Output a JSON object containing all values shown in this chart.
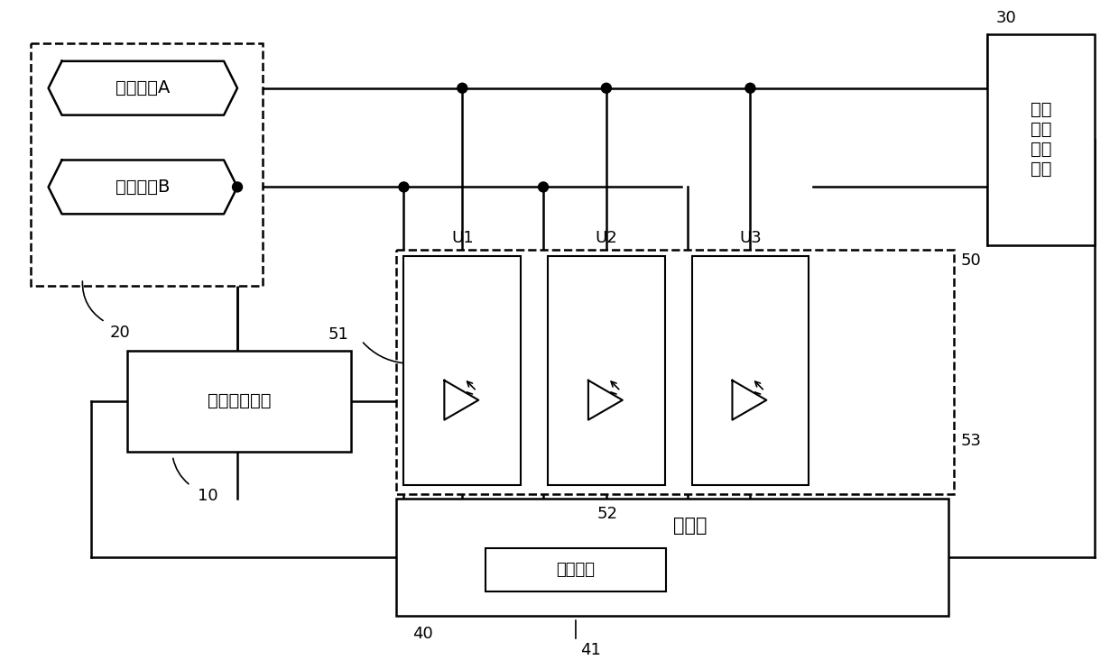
{
  "bg_color": "#ffffff",
  "lc": "#000000",
  "text_yangji": "阳极电极A",
  "text_yinji": "阴极电极B",
  "text_ciji": "刺激脉冲电路",
  "text_mcu": "单片机",
  "text_timer": "计时单元",
  "text_amp": "食管\n心电\n放大\n电路",
  "text_U1": "U1",
  "text_U2": "U2",
  "text_U3": "U3",
  "label_10": "10",
  "label_20": "20",
  "label_30": "30",
  "label_40": "40",
  "label_41": "41",
  "label_50": "50",
  "label_51": "51",
  "label_52": "52",
  "label_53": "53"
}
